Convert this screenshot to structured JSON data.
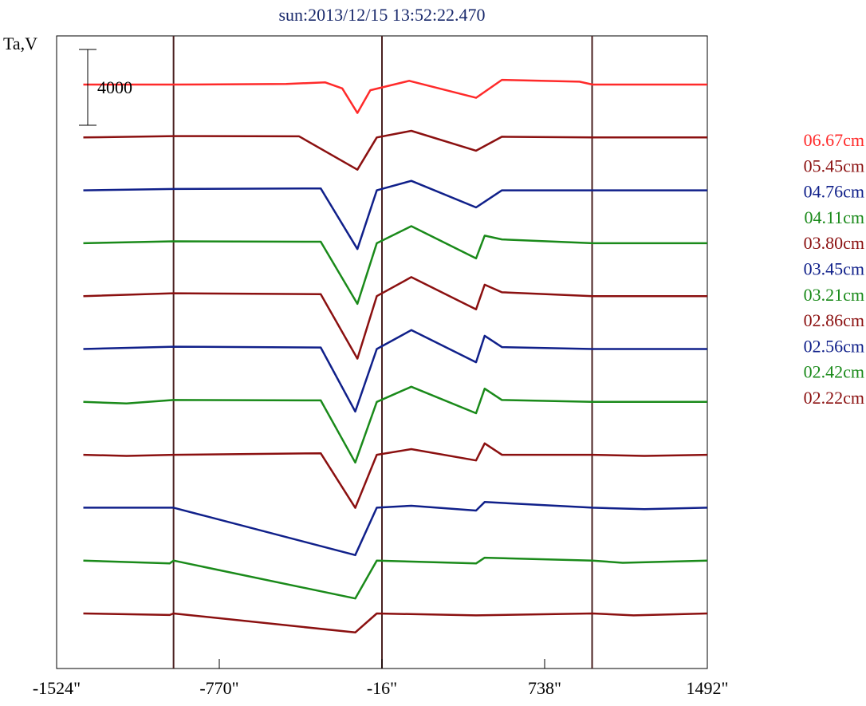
{
  "chart_data": {
    "type": "line",
    "title": "sun:2013/12/15 13:52:22.470",
    "ylabel": "Ta,V",
    "scale_bar_label": "4000",
    "scale_bar_value": 4000,
    "xlim": [
      -1524,
      1492
    ],
    "x_ticks": [
      -1524,
      -770,
      -16,
      738,
      1492
    ],
    "x_tick_labels": [
      "-1524\"",
      "-770\"",
      "-16\"",
      "738\"",
      "1492\""
    ],
    "vertical_markers": [
      -982,
      -16,
      958
    ],
    "stacked": true,
    "legend_placement": "right",
    "colors": {
      "red": "#ff2a2a",
      "darkred": "#8b1010",
      "navy": "#10208a",
      "green": "#1a8a1a",
      "marker": "#4a2020"
    },
    "series": [
      {
        "name": "06.67cm",
        "color": "#ff2a2a",
        "features": [
          [
            -1400,
            0
          ],
          [
            -982,
            0
          ],
          [
            -460,
            30
          ],
          [
            -280,
            120
          ],
          [
            -200,
            -200
          ],
          [
            -130,
            -1500
          ],
          [
            -70,
            -300
          ],
          [
            110,
            200
          ],
          [
            420,
            -700
          ],
          [
            540,
            250
          ],
          [
            900,
            150
          ],
          [
            960,
            0
          ],
          [
            1492,
            0
          ]
        ]
      },
      {
        "name": "05.45cm",
        "color": "#8b1010",
        "features": [
          [
            -1400,
            0
          ],
          [
            -982,
            70
          ],
          [
            -400,
            60
          ],
          [
            -130,
            -1700
          ],
          [
            -40,
            0
          ],
          [
            120,
            350
          ],
          [
            420,
            -700
          ],
          [
            540,
            40
          ],
          [
            960,
            0
          ],
          [
            1492,
            0
          ]
        ]
      },
      {
        "name": "04.76cm",
        "color": "#10208a",
        "features": [
          [
            -1400,
            0
          ],
          [
            -982,
            70
          ],
          [
            -300,
            100
          ],
          [
            -130,
            -3100
          ],
          [
            -40,
            0
          ],
          [
            120,
            500
          ],
          [
            420,
            -900
          ],
          [
            540,
            0
          ],
          [
            960,
            0
          ],
          [
            1492,
            0
          ]
        ]
      },
      {
        "name": "04.11cm",
        "color": "#1a8a1a",
        "features": [
          [
            -1400,
            0
          ],
          [
            -982,
            100
          ],
          [
            -300,
            80
          ],
          [
            -130,
            -3200
          ],
          [
            -40,
            0
          ],
          [
            120,
            900
          ],
          [
            420,
            -800
          ],
          [
            460,
            400
          ],
          [
            540,
            200
          ],
          [
            960,
            0
          ],
          [
            1492,
            0
          ]
        ]
      },
      {
        "name": "03.80cm",
        "color": "#8b1010",
        "features": [
          [
            -1400,
            0
          ],
          [
            -982,
            150
          ],
          [
            -300,
            100
          ],
          [
            -130,
            -3300
          ],
          [
            -40,
            0
          ],
          [
            120,
            1000
          ],
          [
            420,
            -700
          ],
          [
            460,
            600
          ],
          [
            540,
            200
          ],
          [
            960,
            0
          ],
          [
            1492,
            0
          ]
        ]
      },
      {
        "name": "03.45cm",
        "color": "#10208a",
        "features": [
          [
            -1400,
            0
          ],
          [
            -982,
            120
          ],
          [
            -300,
            80
          ],
          [
            -140,
            -3300
          ],
          [
            -40,
            0
          ],
          [
            120,
            1000
          ],
          [
            420,
            -700
          ],
          [
            460,
            700
          ],
          [
            540,
            100
          ],
          [
            960,
            0
          ],
          [
            1492,
            0
          ]
        ]
      },
      {
        "name": "03.21cm",
        "color": "#1a8a1a",
        "features": [
          [
            -1400,
            0
          ],
          [
            -1200,
            -80
          ],
          [
            -982,
            100
          ],
          [
            -300,
            80
          ],
          [
            -140,
            -3200
          ],
          [
            -40,
            0
          ],
          [
            120,
            800
          ],
          [
            420,
            -600
          ],
          [
            460,
            700
          ],
          [
            540,
            100
          ],
          [
            960,
            0
          ],
          [
            1492,
            0
          ]
        ]
      },
      {
        "name": "02.86cm",
        "color": "#8b1010",
        "features": [
          [
            -1400,
            0
          ],
          [
            -1200,
            -60
          ],
          [
            -982,
            0
          ],
          [
            -300,
            80
          ],
          [
            -140,
            -2800
          ],
          [
            -40,
            0
          ],
          [
            120,
            300
          ],
          [
            420,
            -300
          ],
          [
            460,
            600
          ],
          [
            540,
            0
          ],
          [
            960,
            0
          ],
          [
            1200,
            -60
          ],
          [
            1492,
            0
          ]
        ]
      },
      {
        "name": "02.56cm",
        "color": "#10208a",
        "features": [
          [
            -1400,
            0
          ],
          [
            -982,
            0
          ],
          [
            -140,
            -2500
          ],
          [
            -40,
            0
          ],
          [
            120,
            100
          ],
          [
            420,
            -150
          ],
          [
            460,
            300
          ],
          [
            960,
            0
          ],
          [
            1200,
            -80
          ],
          [
            1492,
            0
          ]
        ]
      },
      {
        "name": "02.42cm",
        "color": "#1a8a1a",
        "features": [
          [
            -1400,
            0
          ],
          [
            -1000,
            -150
          ],
          [
            -982,
            0
          ],
          [
            -140,
            -2000
          ],
          [
            -40,
            0
          ],
          [
            420,
            -150
          ],
          [
            460,
            150
          ],
          [
            960,
            0
          ],
          [
            1100,
            -120
          ],
          [
            1492,
            0
          ]
        ]
      },
      {
        "name": "02.22cm",
        "color": "#8b1010",
        "features": [
          [
            -1400,
            0
          ],
          [
            -1000,
            -80
          ],
          [
            -982,
            0
          ],
          [
            -140,
            -1000
          ],
          [
            -40,
            0
          ],
          [
            420,
            -100
          ],
          [
            960,
            0
          ],
          [
            1150,
            -100
          ],
          [
            1492,
            0
          ]
        ]
      }
    ]
  }
}
